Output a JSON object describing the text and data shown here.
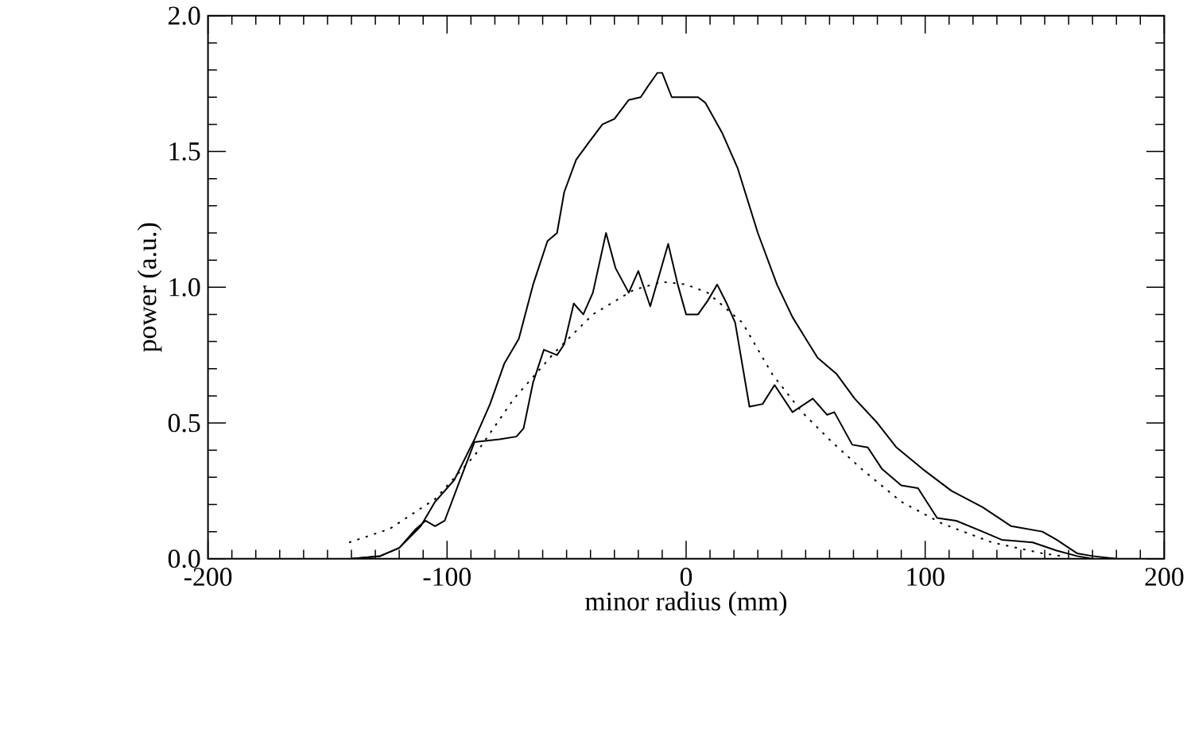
{
  "chart_data": {
    "type": "line",
    "xlabel": "minor radius  (mm)",
    "ylabel": "power  (a.u.)",
    "xlim": [
      -200,
      200
    ],
    "ylim": [
      0,
      2
    ],
    "xticks": [
      -200,
      -100,
      0,
      100,
      200
    ],
    "yticks": [
      {
        "value": 0,
        "label": "0.0"
      },
      {
        "value": 0.5,
        "label": "0.5"
      },
      {
        "value": 1,
        "label": "1.0"
      },
      {
        "value": 1.5,
        "label": "1.5"
      },
      {
        "value": 2,
        "label": "2.0"
      }
    ],
    "grid": false,
    "marker": "none",
    "series": [
      {
        "color": "#000000",
        "line_style": "solid",
        "x": [
          -140,
          -128,
          -120,
          -111,
          -105,
          -97,
          -88.5,
          -82,
          -76,
          -70,
          -64,
          -58,
          -54,
          -51,
          -46,
          -41,
          -35,
          -30,
          -24,
          -19,
          -16,
          -12,
          -10,
          -6,
          0,
          5,
          8,
          15,
          21.5,
          30,
          38,
          44.5,
          55,
          63,
          70.5,
          80,
          88,
          99,
          111,
          124,
          136,
          149,
          155,
          163.5,
          170,
          180
        ],
        "values": [
          0.0,
          0.01,
          0.04,
          0.12,
          0.21,
          0.29,
          0.44,
          0.57,
          0.72,
          0.81,
          1.01,
          1.17,
          1.2,
          1.35,
          1.47,
          1.53,
          1.6,
          1.62,
          1.69,
          1.7,
          1.74,
          1.79,
          1.79,
          1.7,
          1.7,
          1.7,
          1.68,
          1.57,
          1.44,
          1.2,
          1.01,
          0.89,
          0.74,
          0.68,
          0.59,
          0.5,
          0.41,
          0.33,
          0.25,
          0.19,
          0.12,
          0.1,
          0.07,
          0.02,
          0.01,
          0.0
        ]
      },
      {
        "color": "#000000",
        "line_style": "solid",
        "x": [
          -140,
          -128,
          -120,
          -113,
          -109,
          -105,
          -101,
          -95,
          -88.5,
          -78,
          -71,
          -68,
          -64,
          -59.5,
          -54,
          -51,
          -47,
          -43,
          -39,
          -33.5,
          -29.5,
          -24,
          -20,
          -15,
          -7.5,
          -3.5,
          0,
          5,
          9,
          13,
          17,
          20.5,
          26.5,
          32,
          37,
          44.5,
          53,
          59,
          62,
          69.5,
          76,
          82,
          90,
          97,
          105,
          113,
          124,
          132,
          145,
          155,
          163.5,
          170
        ],
        "values": [
          0.0,
          0.01,
          0.04,
          0.11,
          0.14,
          0.12,
          0.14,
          0.28,
          0.43,
          0.44,
          0.45,
          0.48,
          0.65,
          0.77,
          0.75,
          0.79,
          0.94,
          0.9,
          0.98,
          1.2,
          1.07,
          0.98,
          1.06,
          0.93,
          1.16,
          1.01,
          0.9,
          0.9,
          0.95,
          1.01,
          0.94,
          0.87,
          0.56,
          0.57,
          0.64,
          0.54,
          0.59,
          0.53,
          0.54,
          0.42,
          0.41,
          0.33,
          0.27,
          0.26,
          0.15,
          0.14,
          0.1,
          0.07,
          0.06,
          0.03,
          0.01,
          0.0
        ]
      },
      {
        "color": "#000000",
        "line_style": "dotted",
        "x": [
          -141,
          -124,
          -105,
          -88.5,
          -72,
          -55,
          -39,
          -22,
          -10,
          0,
          9,
          23.5,
          36,
          48.5,
          61,
          73.5,
          90,
          107,
          128,
          149,
          157
        ],
        "values": [
          0.06,
          0.11,
          0.22,
          0.38,
          0.59,
          0.76,
          0.9,
          0.99,
          1.02,
          1.01,
          0.98,
          0.87,
          0.68,
          0.54,
          0.43,
          0.33,
          0.21,
          0.13,
          0.06,
          0.02,
          0.01
        ]
      }
    ]
  }
}
